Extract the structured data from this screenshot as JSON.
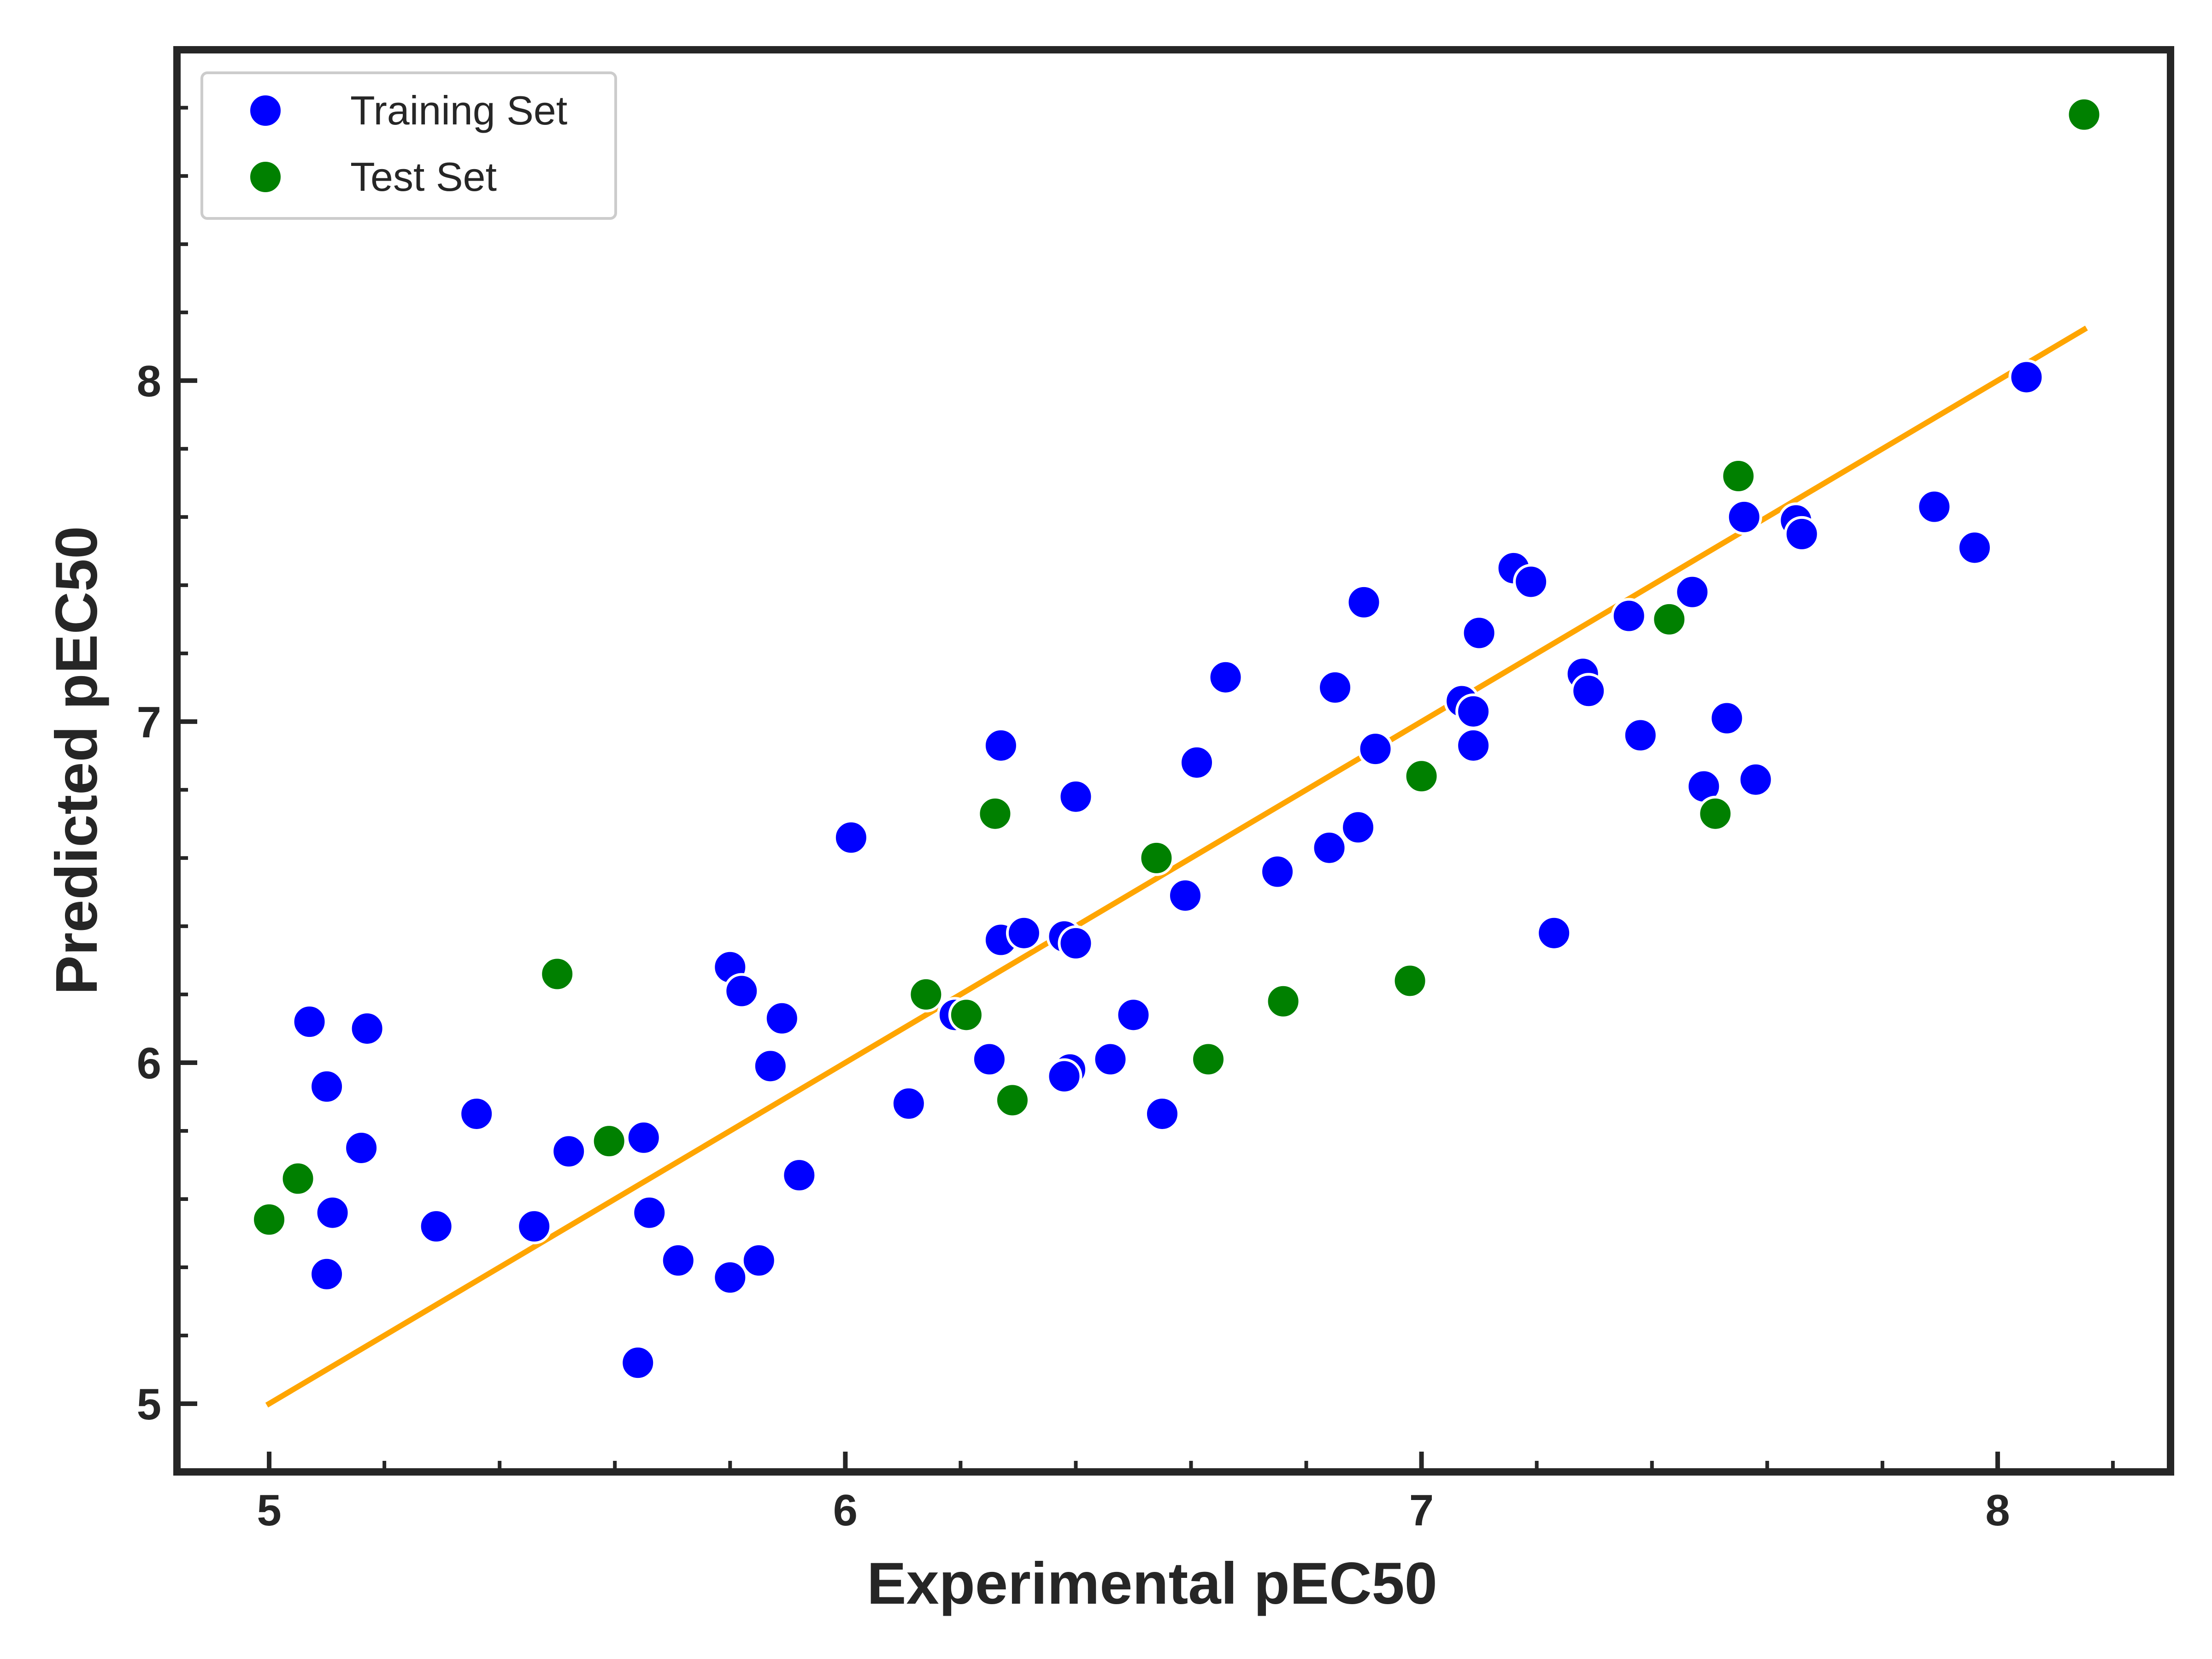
{
  "chart_data": {
    "type": "scatter",
    "title": "",
    "xlabel": "Experimental pEC50",
    "ylabel": "Predicted pEC50",
    "xlim": [
      4.84,
      8.3
    ],
    "ylim": [
      4.8,
      8.97
    ],
    "xticks": [
      5,
      6,
      7,
      8
    ],
    "yticks": [
      5,
      6,
      7,
      8
    ],
    "xtick_labels": [
      "5",
      "6",
      "7",
      "8"
    ],
    "ytick_labels": [
      "5",
      "6",
      "7",
      "8"
    ],
    "grid": false,
    "legend_position": "top-left",
    "series": [
      {
        "name": "Training Set",
        "color": "#0000ff",
        "points": [
          {
            "x": 5.07,
            "y": 6.12
          },
          {
            "x": 5.1,
            "y": 5.93
          },
          {
            "x": 5.11,
            "y": 5.56
          },
          {
            "x": 5.1,
            "y": 5.38
          },
          {
            "x": 5.16,
            "y": 5.75
          },
          {
            "x": 5.17,
            "y": 6.1
          },
          {
            "x": 5.29,
            "y": 5.52
          },
          {
            "x": 5.36,
            "y": 5.85
          },
          {
            "x": 5.46,
            "y": 5.52
          },
          {
            "x": 5.52,
            "y": 5.74
          },
          {
            "x": 5.65,
            "y": 5.78
          },
          {
            "x": 5.66,
            "y": 5.56
          },
          {
            "x": 5.64,
            "y": 5.12
          },
          {
            "x": 5.71,
            "y": 5.42
          },
          {
            "x": 5.8,
            "y": 6.28
          },
          {
            "x": 5.82,
            "y": 6.21
          },
          {
            "x": 5.8,
            "y": 5.37
          },
          {
            "x": 5.85,
            "y": 5.42
          },
          {
            "x": 5.87,
            "y": 5.99
          },
          {
            "x": 5.89,
            "y": 6.13
          },
          {
            "x": 5.92,
            "y": 5.67
          },
          {
            "x": 6.01,
            "y": 6.66
          },
          {
            "x": 6.11,
            "y": 5.88
          },
          {
            "x": 6.19,
            "y": 6.14
          },
          {
            "x": 6.25,
            "y": 6.01
          },
          {
            "x": 6.27,
            "y": 6.36
          },
          {
            "x": 6.27,
            "y": 6.93
          },
          {
            "x": 6.31,
            "y": 6.38
          },
          {
            "x": 6.38,
            "y": 6.37
          },
          {
            "x": 6.39,
            "y": 5.98
          },
          {
            "x": 6.38,
            "y": 5.96
          },
          {
            "x": 6.4,
            "y": 6.35
          },
          {
            "x": 6.4,
            "y": 6.78
          },
          {
            "x": 6.46,
            "y": 6.01
          },
          {
            "x": 6.5,
            "y": 6.14
          },
          {
            "x": 6.55,
            "y": 5.85
          },
          {
            "x": 6.59,
            "y": 6.49
          },
          {
            "x": 6.61,
            "y": 6.88
          },
          {
            "x": 6.66,
            "y": 7.13
          },
          {
            "x": 6.75,
            "y": 6.56
          },
          {
            "x": 6.84,
            "y": 6.63
          },
          {
            "x": 6.85,
            "y": 7.1
          },
          {
            "x": 6.89,
            "y": 6.69
          },
          {
            "x": 6.9,
            "y": 7.35
          },
          {
            "x": 6.92,
            "y": 6.92
          },
          {
            "x": 7.07,
            "y": 7.06
          },
          {
            "x": 7.09,
            "y": 7.03
          },
          {
            "x": 7.09,
            "y": 6.93
          },
          {
            "x": 7.1,
            "y": 7.26
          },
          {
            "x": 7.16,
            "y": 7.45
          },
          {
            "x": 7.19,
            "y": 7.41
          },
          {
            "x": 7.23,
            "y": 6.38
          },
          {
            "x": 7.28,
            "y": 7.14
          },
          {
            "x": 7.29,
            "y": 7.09
          },
          {
            "x": 7.36,
            "y": 7.31
          },
          {
            "x": 7.38,
            "y": 6.96
          },
          {
            "x": 7.47,
            "y": 7.38
          },
          {
            "x": 7.49,
            "y": 6.81
          },
          {
            "x": 7.53,
            "y": 7.01
          },
          {
            "x": 7.56,
            "y": 7.6
          },
          {
            "x": 7.58,
            "y": 6.83
          },
          {
            "x": 7.65,
            "y": 7.59
          },
          {
            "x": 7.66,
            "y": 7.55
          },
          {
            "x": 7.89,
            "y": 7.63
          },
          {
            "x": 7.96,
            "y": 7.51
          },
          {
            "x": 8.05,
            "y": 8.01
          }
        ]
      },
      {
        "name": "Test Set",
        "color": "#008000",
        "points": [
          {
            "x": 5.0,
            "y": 5.54
          },
          {
            "x": 5.05,
            "y": 5.66
          },
          {
            "x": 5.5,
            "y": 6.26
          },
          {
            "x": 5.59,
            "y": 5.77
          },
          {
            "x": 6.14,
            "y": 6.2
          },
          {
            "x": 6.21,
            "y": 6.14
          },
          {
            "x": 6.26,
            "y": 6.73
          },
          {
            "x": 6.29,
            "y": 5.89
          },
          {
            "x": 6.54,
            "y": 6.6
          },
          {
            "x": 6.63,
            "y": 6.01
          },
          {
            "x": 6.76,
            "y": 6.18
          },
          {
            "x": 6.98,
            "y": 6.24
          },
          {
            "x": 7.0,
            "y": 6.84
          },
          {
            "x": 7.43,
            "y": 7.3
          },
          {
            "x": 7.51,
            "y": 6.73
          },
          {
            "x": 7.55,
            "y": 7.72
          },
          {
            "x": 8.15,
            "y": 8.78
          }
        ]
      }
    ],
    "fit_line": {
      "x": [
        5.0,
        8.15
      ],
      "y": [
        5.0,
        8.15
      ],
      "color": "#ffa500"
    }
  }
}
